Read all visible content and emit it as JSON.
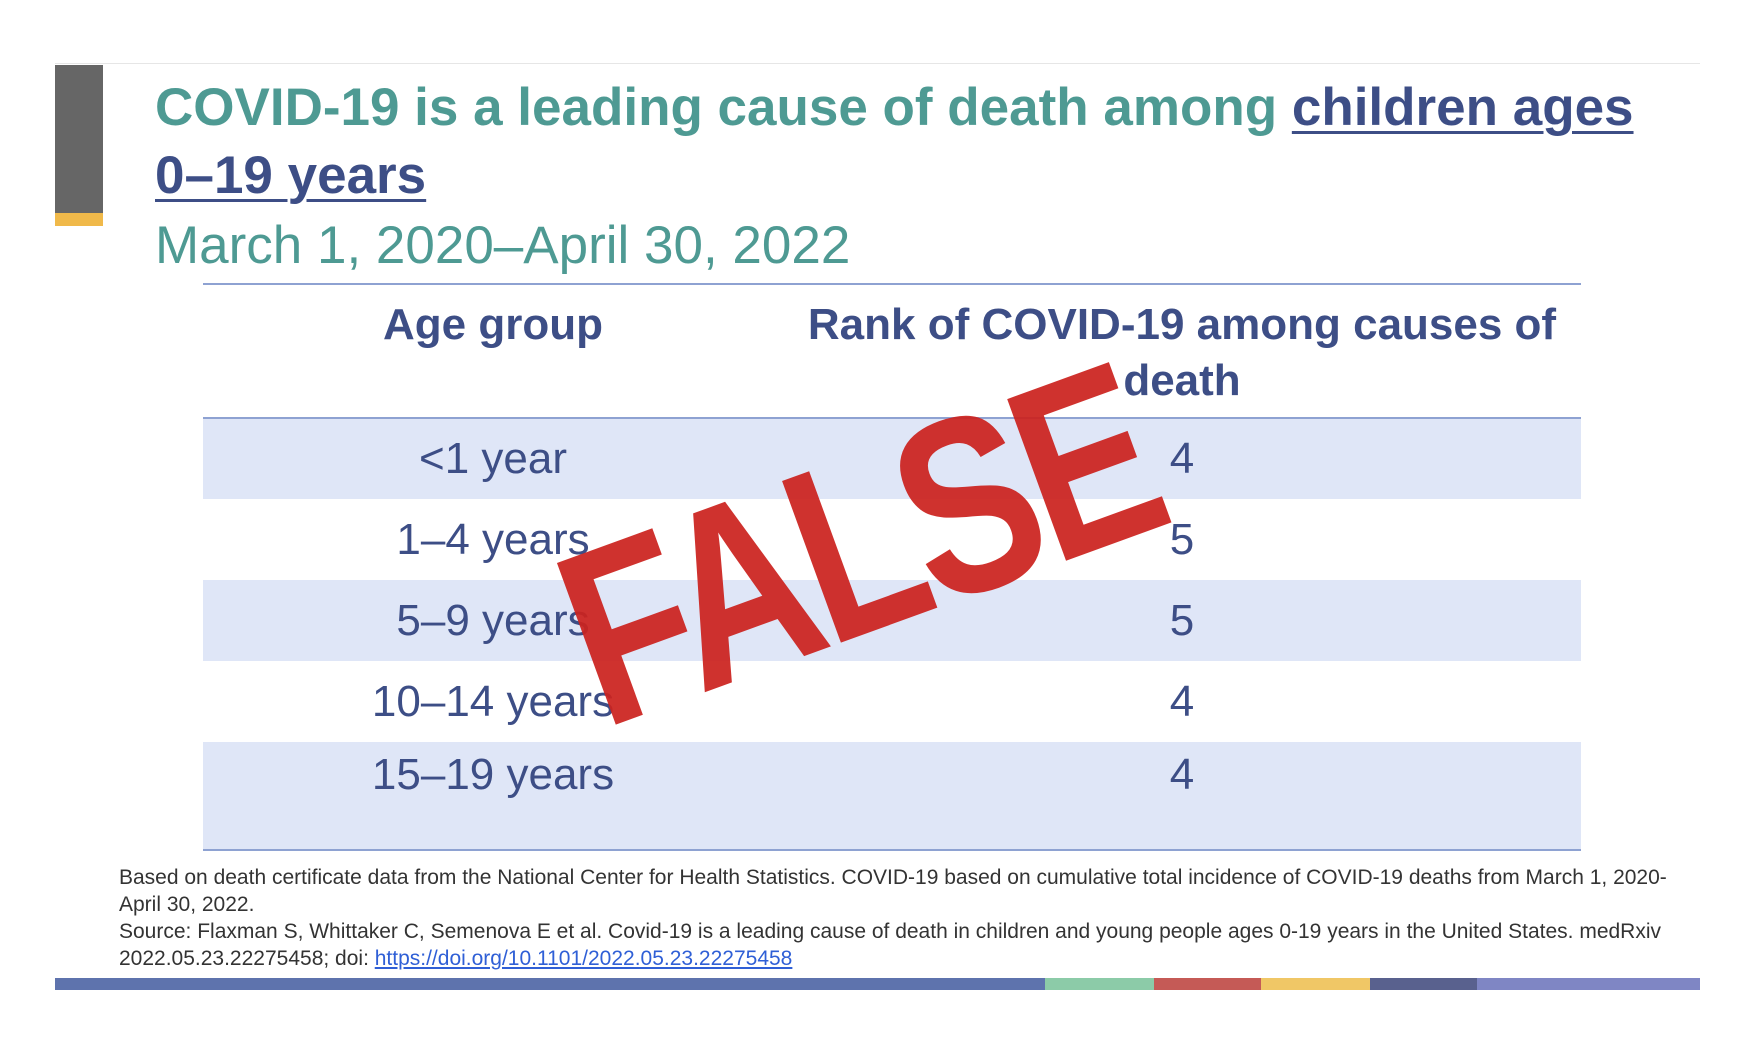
{
  "slide": {
    "title_part1": "COVID-19 is a leading cause of death among ",
    "title_highlight": "children ages 0–19 years",
    "subtitle": "March 1, 2020–April 30, 2022"
  },
  "table": {
    "headers": [
      "Age group",
      "Rank of COVID-19 among causes of death"
    ],
    "rows": [
      {
        "age": "<1 year",
        "rank": "4"
      },
      {
        "age": "1–4 years",
        "rank": "5"
      },
      {
        "age": "5–9 years",
        "rank": "5"
      },
      {
        "age": "10–14 years",
        "rank": "4"
      },
      {
        "age": "15–19 years",
        "rank": "4"
      }
    ]
  },
  "footnote": {
    "line1": "Based on death certificate data from the National Center for Health Statistics. COVID-19 based on cumulative total incidence of COVID-19 deaths from March 1, 2020-April 30, 2022.",
    "source_text": "Source: Flaxman S, Whittaker C, Semenova E et al. Covid-19 is a leading cause of death in children and young people ages 0-19 years in the United States. medRxiv 2022.05.23.22275458; doi: ",
    "doi_link": "https://doi.org/10.1101/2022.05.23.22275458"
  },
  "stamp": {
    "text": "FALSE"
  },
  "colors": {
    "title_teal": "#4e9a93",
    "title_navy": "#3d4e86",
    "table_band": "#dfe6f7",
    "table_rule": "#8ea2d2",
    "stamp_red": "#cc231f",
    "accent_gray": "#666666",
    "accent_gold": "#f0b94a",
    "bottom_bar": [
      "#5e73ad",
      "#8ccba8",
      "#c55a56",
      "#f0c766",
      "#59618e",
      "#7f86c4"
    ]
  }
}
